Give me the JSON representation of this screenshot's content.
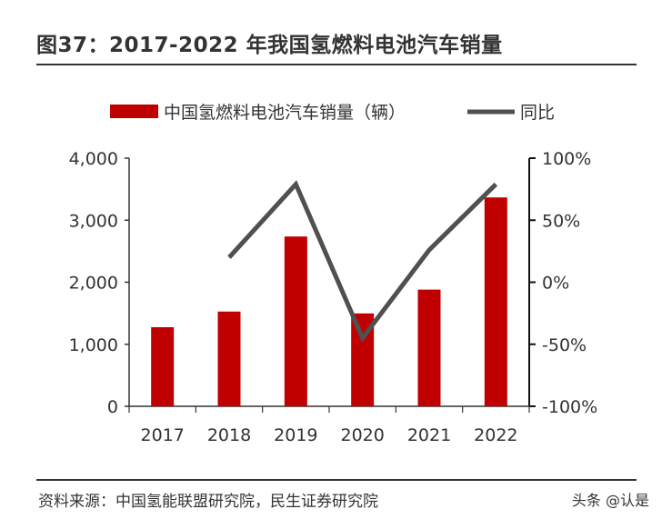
{
  "title": "图37：2017-2022 年我国氢燃料电池汽车销量",
  "source": "资料来源：中国氢能联盟研究院，民生证券研究院",
  "watermark": "头条 @认是",
  "colors": {
    "bar": "#C00000",
    "line": "#505050"
  },
  "chart_data": {
    "type": "bar+line",
    "categories": [
      "2017",
      "2018",
      "2019",
      "2020",
      "2021",
      "2022"
    ],
    "series": [
      {
        "name": "中国氢燃料电池汽车销量（辆）",
        "type": "bar",
        "axis": "left",
        "values": [
          1275,
          1527,
          2737,
          1497,
          1881,
          3367
        ]
      },
      {
        "name": "同比",
        "type": "line",
        "axis": "right",
        "values": [
          null,
          20,
          79,
          -45,
          26,
          79
        ]
      }
    ],
    "y_left": {
      "range": [
        0,
        4000
      ],
      "ticks": [
        "0",
        "1,000",
        "2,000",
        "3,000",
        "4,000"
      ]
    },
    "y_right": {
      "range": [
        -100,
        100
      ],
      "ticks": [
        "-100%",
        "-50%",
        "0%",
        "50%",
        "100%"
      ]
    },
    "grid": false,
    "legend": "top"
  }
}
